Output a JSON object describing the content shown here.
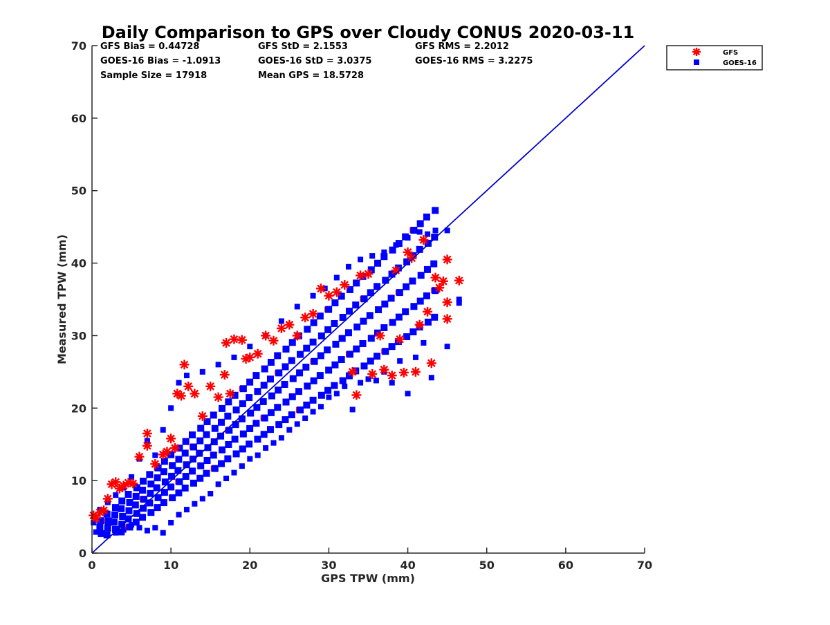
{
  "chart_data": {
    "type": "scatter",
    "title": "Daily Comparison to GPS over Cloudy CONUS 2020-03-11",
    "xlabel": "GPS TPW (mm)",
    "ylabel": "Measured TPW (mm)",
    "xlim": [
      0,
      70
    ],
    "ylim": [
      0,
      70
    ],
    "xticks": [
      "0",
      "10",
      "20",
      "30",
      "40",
      "50",
      "60",
      "70"
    ],
    "yticks": [
      "0",
      "10",
      "20",
      "30",
      "40",
      "50",
      "60",
      "70"
    ],
    "grid": false,
    "legend_position": "outside top-right",
    "stats": [
      [
        "GFS Bias = 0.44728",
        "GFS StD = 2.1553",
        "GFS RMS = 2.2012"
      ],
      [
        "GOES-16 Bias = -1.0913",
        "GOES-16 StD = 3.0375",
        "GOES-16 RMS = 3.2275"
      ],
      [
        "Sample Size = 17918",
        "Mean GPS = 18.5728",
        ""
      ]
    ],
    "reference_line": {
      "x": [
        0,
        70
      ],
      "y": [
        0,
        70
      ],
      "color": "#0000cc"
    },
    "series": [
      {
        "name": "GFS",
        "marker": "asterisk",
        "color": "#ff0000",
        "points": [
          [
            0.2,
            5.2
          ],
          [
            0.5,
            4.8
          ],
          [
            1.0,
            5.6
          ],
          [
            1.5,
            5.9
          ],
          [
            2.0,
            7.5
          ],
          [
            2.5,
            9.5
          ],
          [
            3.0,
            9.8
          ],
          [
            3.5,
            8.9
          ],
          [
            4.0,
            9.3
          ],
          [
            4.6,
            9.7
          ],
          [
            5.2,
            9.6
          ],
          [
            6.0,
            13.3
          ],
          [
            7.0,
            16.5
          ],
          [
            7.0,
            14.8
          ],
          [
            8.0,
            12.3
          ],
          [
            9.0,
            13.6
          ],
          [
            9.5,
            14.0
          ],
          [
            10.0,
            15.8
          ],
          [
            10.5,
            14.5
          ],
          [
            10.8,
            22.0
          ],
          [
            11.3,
            21.7
          ],
          [
            11.7,
            26.0
          ],
          [
            12.2,
            23.0
          ],
          [
            13.0,
            22.0
          ],
          [
            14.0,
            18.9
          ],
          [
            15.0,
            23.0
          ],
          [
            16.0,
            21.5
          ],
          [
            16.8,
            24.6
          ],
          [
            17.0,
            29.0
          ],
          [
            17.5,
            22.0
          ],
          [
            18.0,
            29.5
          ],
          [
            19.0,
            29.4
          ],
          [
            19.5,
            26.8
          ],
          [
            20.0,
            27.0
          ],
          [
            21.0,
            27.5
          ],
          [
            22.0,
            30.0
          ],
          [
            23.0,
            29.3
          ],
          [
            24.0,
            31.0
          ],
          [
            25.0,
            31.5
          ],
          [
            26.0,
            30.0
          ],
          [
            27.0,
            32.5
          ],
          [
            28.0,
            33.0
          ],
          [
            29.0,
            36.5
          ],
          [
            30.0,
            35.5
          ],
          [
            31.0,
            36.0
          ],
          [
            32.0,
            37.0
          ],
          [
            33.0,
            25.0
          ],
          [
            33.5,
            21.8
          ],
          [
            34.0,
            38.3
          ],
          [
            35.0,
            38.5
          ],
          [
            35.5,
            24.7
          ],
          [
            36.5,
            30.0
          ],
          [
            37.0,
            25.3
          ],
          [
            38.0,
            24.5
          ],
          [
            38.5,
            39.0
          ],
          [
            39.0,
            29.5
          ],
          [
            39.5,
            24.9
          ],
          [
            40.0,
            41.5
          ],
          [
            40.5,
            40.7
          ],
          [
            41.0,
            25.0
          ],
          [
            41.5,
            31.5
          ],
          [
            42.0,
            43.2
          ],
          [
            42.5,
            33.3
          ],
          [
            43.0,
            26.2
          ],
          [
            43.5,
            38.0
          ],
          [
            44.0,
            36.6
          ],
          [
            44.5,
            37.5
          ],
          [
            45.0,
            34.6
          ],
          [
            45.0,
            32.3
          ],
          [
            45.0,
            40.5
          ],
          [
            46.5,
            37.6
          ]
        ]
      },
      {
        "name": "GOES-16",
        "marker": "square",
        "color": "#0000ff",
        "points": [
          [
            0.2,
            4.2
          ],
          [
            0.5,
            2.9
          ],
          [
            1.0,
            3.4
          ],
          [
            2.0,
            3.8
          ],
          [
            3.0,
            2.8
          ],
          [
            4.0,
            3.2
          ],
          [
            5.0,
            3.9
          ],
          [
            6.0,
            3.5
          ],
          [
            7.0,
            3.1
          ],
          [
            8.0,
            3.5
          ],
          [
            9.0,
            2.8
          ],
          [
            10.0,
            4.2
          ],
          [
            11.0,
            5.3
          ],
          [
            12.0,
            6.0
          ],
          [
            13.0,
            6.8
          ],
          [
            14.0,
            7.5
          ],
          [
            15.0,
            8.2
          ],
          [
            16.0,
            9.5
          ],
          [
            17.0,
            10.3
          ],
          [
            18.0,
            11.1
          ],
          [
            19.0,
            12.0
          ],
          [
            20.0,
            13.0
          ],
          [
            21.0,
            13.5
          ],
          [
            22.0,
            14.5
          ],
          [
            23.0,
            15.2
          ],
          [
            24.0,
            15.9
          ],
          [
            25.0,
            17.0
          ],
          [
            26.0,
            17.8
          ],
          [
            27.0,
            18.6
          ],
          [
            28.0,
            19.5
          ],
          [
            29.0,
            20.2
          ],
          [
            30.0,
            21.5
          ],
          [
            31.0,
            22.0
          ],
          [
            32.0,
            23.0
          ],
          [
            33.0,
            19.8
          ],
          [
            34.0,
            23.5
          ],
          [
            35.0,
            24.0
          ],
          [
            36.0,
            23.8
          ],
          [
            37.0,
            25.0
          ],
          [
            38.0,
            23.5
          ],
          [
            39.0,
            26.5
          ],
          [
            40.0,
            22.0
          ],
          [
            41.0,
            27.0
          ],
          [
            42.0,
            29.0
          ],
          [
            43.0,
            24.2
          ],
          [
            45.0,
            28.5
          ],
          [
            46.5,
            34.5
          ],
          [
            46.5,
            35.0
          ],
          [
            45.0,
            44.5
          ],
          [
            43.5,
            44.5
          ],
          [
            42.5,
            44.0
          ],
          [
            41.5,
            44.3
          ],
          [
            40.0,
            43.5
          ],
          [
            38.5,
            42.5
          ],
          [
            37.0,
            41.5
          ],
          [
            35.5,
            41.0
          ],
          [
            34.0,
            40.5
          ],
          [
            32.5,
            39.5
          ],
          [
            31.0,
            38.0
          ],
          [
            29.5,
            36.5
          ],
          [
            28.0,
            35.5
          ],
          [
            26.0,
            34.0
          ],
          [
            24.0,
            32.0
          ],
          [
            22.0,
            30.0
          ],
          [
            20.0,
            28.5
          ],
          [
            18.0,
            27.0
          ],
          [
            16.0,
            26.0
          ],
          [
            14.0,
            25.0
          ],
          [
            12.0,
            24.5
          ],
          [
            11.0,
            23.5
          ],
          [
            10.0,
            20.0
          ],
          [
            9.0,
            17.0
          ],
          [
            8.0,
            13.5
          ],
          [
            7.0,
            15.5
          ],
          [
            6.0,
            13.0
          ],
          [
            5.0,
            10.5
          ],
          [
            4.0,
            9.0
          ],
          [
            3.0,
            8.0
          ],
          [
            2.0,
            7.0
          ],
          [
            1.0,
            6.0
          ]
        ]
      }
    ]
  }
}
